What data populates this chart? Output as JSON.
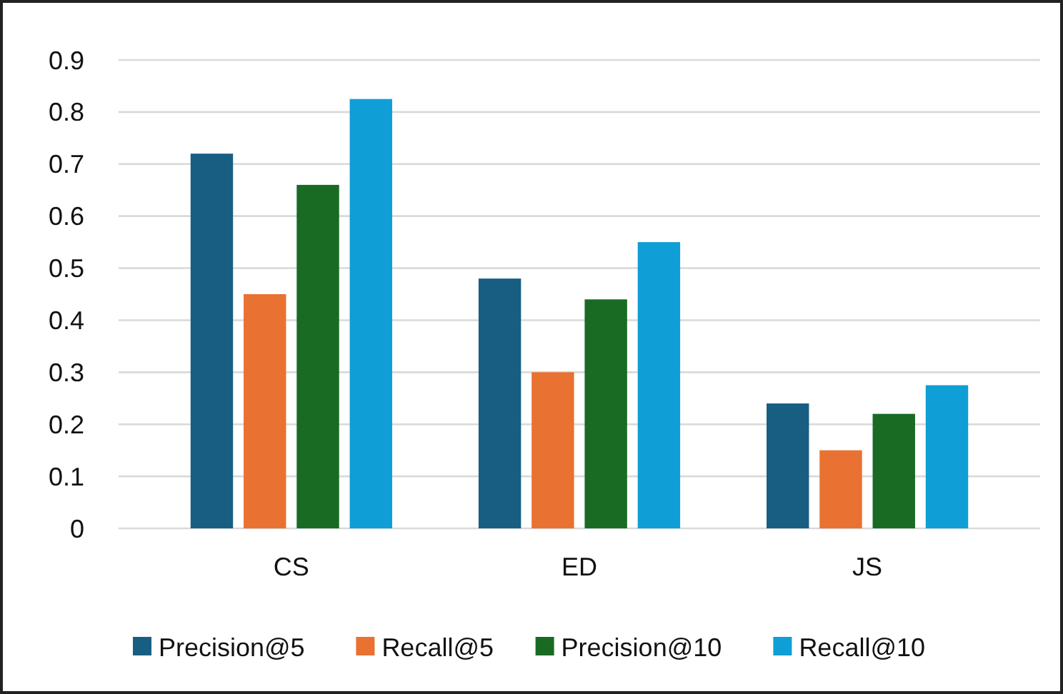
{
  "chart_data": {
    "type": "bar",
    "categories": [
      "CS",
      "ED",
      "JS"
    ],
    "series": [
      {
        "name": "Precision@5",
        "color": "#175e82",
        "values": [
          0.72,
          0.48,
          0.24
        ]
      },
      {
        "name": "Recall@5",
        "color": "#e97132",
        "values": [
          0.45,
          0.3,
          0.15
        ]
      },
      {
        "name": "Precision@10",
        "color": "#196b24",
        "values": [
          0.66,
          0.44,
          0.22
        ]
      },
      {
        "name": "Recall@10",
        "color": "#0f9ed5",
        "values": [
          0.825,
          0.55,
          0.275
        ]
      }
    ],
    "ylim": [
      0,
      0.9
    ],
    "yticks": [
      0,
      0.1,
      0.2,
      0.3,
      0.4,
      0.5,
      0.6,
      0.7,
      0.8,
      0.9
    ],
    "grid": "y",
    "legend": "bottom"
  }
}
